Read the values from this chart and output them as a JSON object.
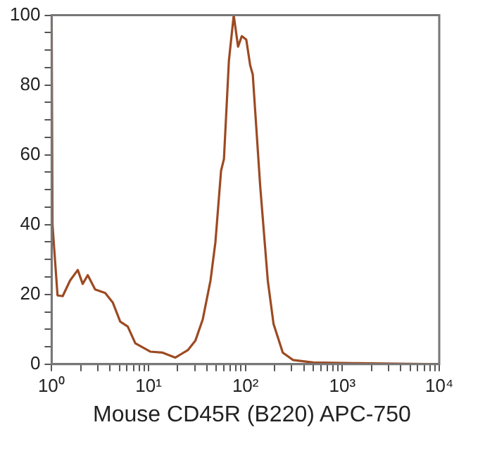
{
  "chart_data": {
    "type": "line",
    "xlabel": "Mouse CD45R (B220)  APC-750",
    "log": "x",
    "grid": false,
    "legend": false,
    "marker": "none",
    "line_style": "solid",
    "xlim": [
      1,
      10000
    ],
    "ylim": [
      0,
      100
    ],
    "xticks": [
      {
        "value": 1,
        "label": "10⁰"
      },
      {
        "value": 2,
        "label": null
      },
      {
        "value": 3,
        "label": null
      },
      {
        "value": 4,
        "label": null
      },
      {
        "value": 5,
        "label": null
      },
      {
        "value": 6,
        "label": null
      },
      {
        "value": 7,
        "label": null
      },
      {
        "value": 8,
        "label": null
      },
      {
        "value": 9,
        "label": null
      },
      {
        "value": 10,
        "label": "10¹"
      },
      {
        "value": 20,
        "label": null
      },
      {
        "value": 30,
        "label": null
      },
      {
        "value": 40,
        "label": null
      },
      {
        "value": 50,
        "label": null
      },
      {
        "value": 60,
        "label": null
      },
      {
        "value": 70,
        "label": null
      },
      {
        "value": 80,
        "label": null
      },
      {
        "value": 90,
        "label": null
      },
      {
        "value": 100,
        "label": "10²"
      },
      {
        "value": 200,
        "label": null
      },
      {
        "value": 300,
        "label": null
      },
      {
        "value": 400,
        "label": null
      },
      {
        "value": 500,
        "label": null
      },
      {
        "value": 600,
        "label": null
      },
      {
        "value": 700,
        "label": null
      },
      {
        "value": 800,
        "label": null
      },
      {
        "value": 900,
        "label": null
      },
      {
        "value": 1000,
        "label": "10³"
      },
      {
        "value": 2000,
        "label": null
      },
      {
        "value": 3000,
        "label": null
      },
      {
        "value": 4000,
        "label": null
      },
      {
        "value": 5000,
        "label": null
      },
      {
        "value": 6000,
        "label": null
      },
      {
        "value": 7000,
        "label": null
      },
      {
        "value": 8000,
        "label": null
      },
      {
        "value": 9000,
        "label": null
      },
      {
        "value": 10000,
        "label": "10⁴"
      }
    ],
    "yticks": [
      0,
      {
        "value": 5,
        "label": null
      },
      {
        "value": 10,
        "label": null
      },
      {
        "value": 15,
        "label": null
      },
      20,
      {
        "value": 25,
        "label": null
      },
      {
        "value": 30,
        "label": null
      },
      {
        "value": 35,
        "label": null
      },
      40,
      {
        "value": 45,
        "label": null
      },
      {
        "value": 50,
        "label": null
      },
      {
        "value": 55,
        "label": null
      },
      60,
      {
        "value": 65,
        "label": null
      },
      {
        "value": 70,
        "label": null
      },
      {
        "value": 75,
        "label": null
      },
      80,
      {
        "value": 85,
        "label": null
      },
      {
        "value": 90,
        "label": null
      },
      {
        "value": 95,
        "label": null
      },
      100
    ],
    "series": [
      {
        "color": "#9c4a22",
        "x": [
          1,
          1.02,
          1.15,
          1.3,
          1.55,
          1.86,
          2.09,
          2.36,
          2.81,
          3.57,
          4.27,
          5.1,
          6.1,
          7.3,
          10.4,
          14,
          18.9,
          25.4,
          30.4,
          36.3,
          43.6,
          49,
          56,
          60,
          67.5,
          75.7,
          83.9,
          91.7,
          102,
          112,
          119,
          142,
          170,
          195,
          243,
          310,
          500,
          1290,
          10000
        ],
        "values": [
          100,
          40,
          19.7,
          19.5,
          24,
          27,
          23,
          25.5,
          21.4,
          20.4,
          17.7,
          12.2,
          10.8,
          6,
          3.6,
          3.3,
          1.9,
          4,
          6.7,
          12.9,
          24,
          35,
          55.4,
          58.8,
          87,
          100,
          91,
          94,
          93,
          85.6,
          83,
          51,
          24,
          11.5,
          3.3,
          1.2,
          0.5,
          0.3,
          0
        ]
      }
    ]
  }
}
